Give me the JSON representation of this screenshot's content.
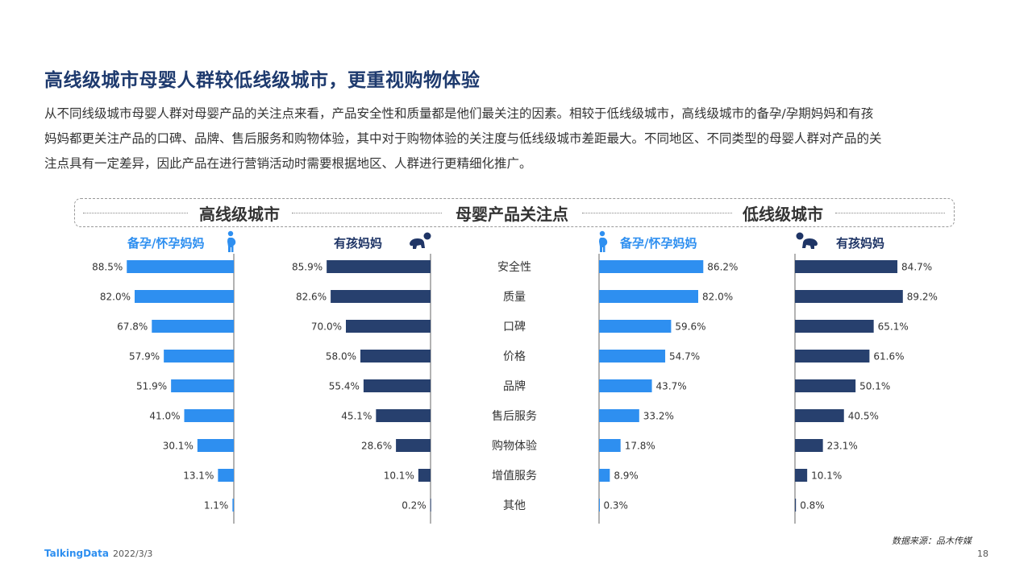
{
  "slide": {
    "title": "高线级城市母婴人群较低线级城市，更重视购物体验",
    "description": [
      "从不同线级城市母婴人群对母婴产品的关注点来看，产品安全性和质量都是他们最关注的因素。相较于低线级城市，高线级城市的备孕/孕期妈妈和有孩",
      "妈妈都更关注产品的口碑、品牌、售后服务和购物体验，其中对于购物体验的关注度与低线级城市差距最大。不同地区、不同类型的母婴人群对产品的关",
      "注点具有一定差异，因此产品在进行营销活动时需要根据地区、人群进行更精细化推广。"
    ],
    "header": {
      "left": "高线级城市",
      "center": "母婴产品关注点",
      "right": "低线级城市"
    },
    "subgroups": {
      "high_pregnant": "备孕/怀孕妈妈",
      "high_mother": "有孩妈妈",
      "low_pregnant": "备孕/怀孕妈妈",
      "low_mother": "有孩妈妈"
    },
    "footer": {
      "logo": "TalkingData",
      "date": "2022/3/3",
      "source": "数据来源：品木传媒",
      "page": "18"
    }
  },
  "colors": {
    "blue": "#2e8ff0",
    "navy": "#27406e",
    "title": "#1e3a6e"
  },
  "icons": {
    "pregnant": "pregnant-woman-icon",
    "baby": "crawling-baby-icon"
  },
  "chart_data": {
    "type": "bar",
    "orientation": "horizontal",
    "categories": [
      "安全性",
      "质量",
      "口碑",
      "价格",
      "品牌",
      "售后服务",
      "购物体验",
      "增值服务",
      "其他"
    ],
    "series": [
      {
        "name": "备孕/怀孕妈妈",
        "group": "高线级城市",
        "color": "#2e8ff0",
        "direction": "left",
        "values": [
          88.5,
          82.0,
          67.8,
          57.9,
          51.9,
          41.0,
          30.1,
          13.1,
          1.1
        ]
      },
      {
        "name": "有孩妈妈",
        "group": "高线级城市",
        "color": "#27406e",
        "direction": "left",
        "values": [
          85.9,
          82.6,
          70.0,
          58.0,
          55.4,
          45.1,
          28.6,
          10.1,
          0.2
        ]
      },
      {
        "name": "备孕/怀孕妈妈",
        "group": "低线级城市",
        "color": "#2e8ff0",
        "direction": "right",
        "values": [
          86.2,
          82.0,
          59.6,
          54.7,
          43.7,
          33.2,
          17.8,
          8.9,
          0.3
        ]
      },
      {
        "name": "有孩妈妈",
        "group": "低线级城市",
        "color": "#27406e",
        "direction": "right",
        "values": [
          84.7,
          89.2,
          65.1,
          61.6,
          50.1,
          40.5,
          23.1,
          10.1,
          0.8
        ]
      }
    ],
    "unit": "%"
  }
}
